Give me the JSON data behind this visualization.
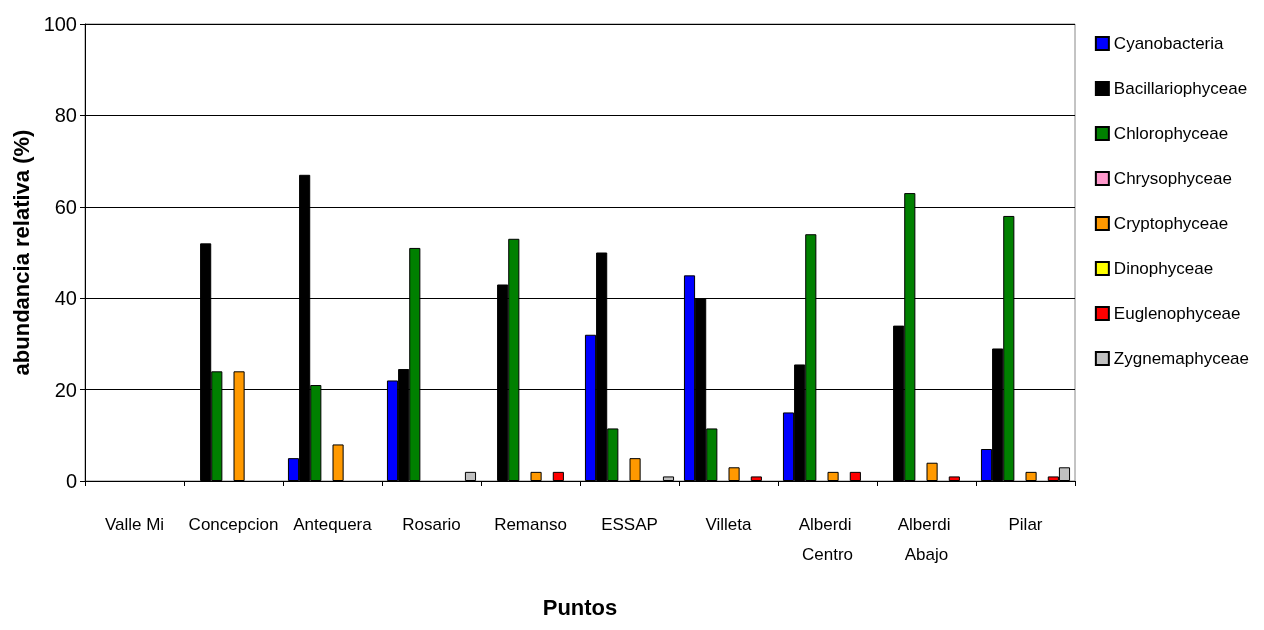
{
  "chart_data": {
    "type": "bar",
    "xlabel": "Puntos",
    "ylabel": "abundancia relativa (%)",
    "categories": [
      "Valle Mi",
      "Concepcion",
      "Antequera",
      "Rosario",
      "Remanso",
      "ESSAP",
      "Villeta",
      "Alberdi Centro",
      "Alberdi Abajo",
      "Pilar"
    ],
    "series": [
      {
        "name": "Cyanobacteria",
        "color": "#0000ff",
        "values": [
          0,
          0,
          5,
          22,
          0,
          32,
          45,
          15,
          0,
          7
        ]
      },
      {
        "name": "Bacillariophyceae",
        "color": "#000000",
        "values": [
          0,
          52,
          67,
          24.5,
          43,
          50,
          40,
          25.5,
          34,
          29
        ]
      },
      {
        "name": "Chlorophyceae",
        "color": "#008000",
        "values": [
          0,
          24,
          21,
          51,
          53,
          11.5,
          11.5,
          54,
          63,
          58
        ]
      },
      {
        "name": "Chrysophyceae",
        "color": "#ff99cc",
        "values": [
          0,
          0,
          0,
          0,
          0,
          0,
          0,
          0,
          0,
          0
        ]
      },
      {
        "name": "Cryptophyceae",
        "color": "#ff9900",
        "values": [
          0,
          24,
          8,
          0,
          2,
          5,
          3,
          2,
          4,
          2
        ]
      },
      {
        "name": "Dinophyceae",
        "color": "#ffff00",
        "values": [
          0,
          0,
          0,
          0,
          0,
          0,
          0,
          0,
          0,
          0
        ]
      },
      {
        "name": "Euglenophyceae",
        "color": "#ff0000",
        "values": [
          0,
          0,
          0,
          0,
          2,
          0,
          1,
          2,
          1,
          1
        ]
      },
      {
        "name": "Zygnemaphyceae",
        "color": "#c0c0c0",
        "values": [
          0,
          0,
          0,
          2,
          0,
          1,
          0,
          0,
          0,
          3
        ]
      }
    ],
    "ylim": [
      0,
      100
    ],
    "yticks": [
      0,
      20,
      40,
      60,
      80,
      100
    ],
    "grid": "y",
    "legend": "right"
  }
}
